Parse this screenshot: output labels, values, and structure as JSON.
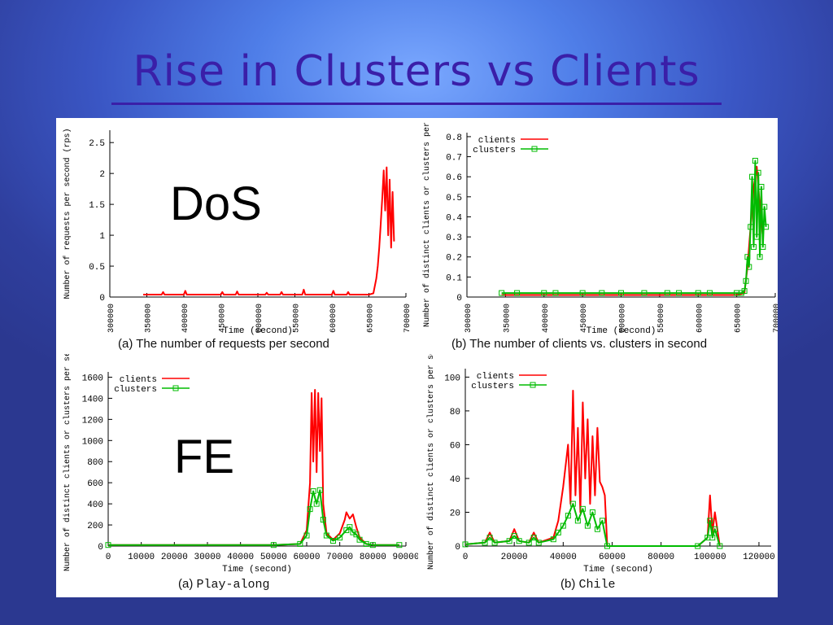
{
  "slide": {
    "title": "Rise in Clusters vs Clients",
    "label_dos": "DoS",
    "label_fe": "FE"
  },
  "colors": {
    "clients": "#ff0000",
    "clusters": "#00bb00",
    "title": "#3a1fa8"
  },
  "chart_data": [
    {
      "id": "dos-requests",
      "type": "line",
      "caption_prefix": "(a)",
      "caption_text": "The number of requests per second",
      "xlabel": "Time (second)",
      "ylabel": "Number of requests per second (rps)",
      "xlim": [
        300000,
        700000
      ],
      "ylim": [
        0,
        2.7
      ],
      "xticks": [
        300000,
        350000,
        400000,
        450000,
        500000,
        550000,
        600000,
        650000,
        700000
      ],
      "yticks": [
        0,
        0.5,
        1,
        1.5,
        2,
        2.5
      ],
      "x_tick_rotate": true,
      "legend": [],
      "series": [
        {
          "name": "",
          "color": "#ff0000",
          "x": [
            345000,
            370000,
            372000,
            374000,
            400000,
            402000,
            404000,
            450000,
            452000,
            454000,
            470000,
            472000,
            474000,
            510000,
            512000,
            514000,
            530000,
            532000,
            534000,
            560000,
            562000,
            564000,
            600000,
            602000,
            604000,
            620000,
            622000,
            624000,
            650000,
            656000,
            660000,
            662000,
            664000,
            666000,
            668000,
            670000,
            672000,
            674000,
            676000,
            678000,
            680000,
            682000,
            684000
          ],
          "y": [
            0.04,
            0.04,
            0.08,
            0.04,
            0.04,
            0.1,
            0.04,
            0.04,
            0.08,
            0.04,
            0.04,
            0.09,
            0.04,
            0.04,
            0.07,
            0.04,
            0.04,
            0.08,
            0.04,
            0.04,
            0.12,
            0.04,
            0.04,
            0.1,
            0.04,
            0.04,
            0.08,
            0.04,
            0.04,
            0.06,
            0.3,
            0.5,
            0.8,
            1.2,
            1.6,
            2.05,
            1.4,
            2.1,
            1.0,
            1.9,
            0.8,
            1.7,
            0.9
          ]
        }
      ]
    },
    {
      "id": "dos-clients-clusters",
      "type": "line",
      "caption_prefix": "(b)",
      "caption_text": "The number of clients vs. clusters in second",
      "xlabel": "Time (second)",
      "ylabel": "Number of distinct clients or clusters per sec",
      "xlim": [
        300000,
        700000
      ],
      "ylim": [
        0,
        0.82
      ],
      "xticks": [
        300000,
        350000,
        400000,
        450000,
        500000,
        550000,
        600000,
        650000,
        700000
      ],
      "yticks": [
        0,
        0.1,
        0.2,
        0.3,
        0.4,
        0.5,
        0.6,
        0.7,
        0.8
      ],
      "x_tick_rotate": true,
      "legend": [
        {
          "label": "clients",
          "color": "#ff0000",
          "marker": false
        },
        {
          "label": "clusters",
          "color": "#00bb00",
          "marker": true
        }
      ],
      "series": [
        {
          "name": "clients",
          "color": "#ff0000",
          "x": [
            345000,
            650000,
            660000,
            664000,
            668000,
            672000,
            676000,
            680000,
            684000
          ],
          "y": [
            0.01,
            0.01,
            0.02,
            0.15,
            0.35,
            0.55,
            0.65,
            0.45,
            0.3
          ]
        },
        {
          "name": "clusters",
          "color": "#00bb00",
          "x": [
            345000,
            365000,
            400000,
            415000,
            450000,
            475000,
            500000,
            530000,
            560000,
            575000,
            600000,
            615000,
            650000,
            656000,
            660000,
            662000,
            664000,
            666000,
            668000,
            670000,
            672000,
            674000,
            676000,
            678000,
            680000,
            682000,
            684000,
            686000,
            688000
          ],
          "y": [
            0.02,
            0.02,
            0.02,
            0.02,
            0.02,
            0.02,
            0.02,
            0.02,
            0.02,
            0.02,
            0.02,
            0.02,
            0.02,
            0.02,
            0.03,
            0.08,
            0.2,
            0.15,
            0.35,
            0.6,
            0.25,
            0.68,
            0.3,
            0.62,
            0.2,
            0.55,
            0.25,
            0.45,
            0.35
          ]
        }
      ]
    },
    {
      "id": "fe-play-along",
      "type": "line",
      "caption_prefix": "(a)",
      "caption_text": "Play-along",
      "xlabel": "Time (second)",
      "ylabel": "Number of distinct clients or clusters per sec",
      "xlim": [
        0,
        90000
      ],
      "ylim": [
        0,
        1650
      ],
      "xticks": [
        0,
        10000,
        20000,
        30000,
        40000,
        50000,
        60000,
        70000,
        80000,
        90000
      ],
      "yticks": [
        0,
        200,
        400,
        600,
        800,
        1000,
        1200,
        1400,
        1600
      ],
      "x_tick_rotate": false,
      "legend": [
        {
          "label": "clients",
          "color": "#ff0000",
          "marker": false
        },
        {
          "label": "clusters",
          "color": "#00bb00",
          "marker": true
        }
      ],
      "series": [
        {
          "name": "clients",
          "color": "#ff0000",
          "x": [
            0,
            50000,
            58000,
            60000,
            61000,
            61500,
            62000,
            62500,
            63000,
            63500,
            64000,
            64500,
            65000,
            66000,
            68000,
            70000,
            71500,
            72000,
            73000,
            74000,
            75000,
            76000,
            78000,
            80000,
            88000
          ],
          "y": [
            10,
            10,
            20,
            150,
            600,
            1450,
            800,
            1480,
            700,
            1450,
            900,
            1400,
            400,
            120,
            60,
            120,
            250,
            320,
            260,
            300,
            180,
            80,
            20,
            10,
            10
          ]
        },
        {
          "name": "clusters",
          "color": "#00bb00",
          "x": [
            0,
            50000,
            58000,
            60000,
            61000,
            62000,
            63000,
            64000,
            65000,
            66000,
            68000,
            70000,
            72000,
            73000,
            74000,
            75000,
            76000,
            78000,
            80000,
            88000
          ],
          "y": [
            10,
            10,
            20,
            100,
            350,
            520,
            400,
            530,
            250,
            100,
            50,
            80,
            150,
            180,
            130,
            110,
            60,
            20,
            10,
            10
          ]
        }
      ]
    },
    {
      "id": "fe-chile",
      "type": "line",
      "caption_prefix": "(b)",
      "caption_text": "Chile",
      "xlabel": "Time (second)",
      "ylabel": "Number of distinct clients or clusters per sec",
      "xlim": [
        0,
        125000
      ],
      "ylim": [
        0,
        105
      ],
      "xticks": [
        0,
        20000,
        40000,
        60000,
        80000,
        100000,
        120000
      ],
      "yticks": [
        0,
        20,
        40,
        60,
        80,
        100
      ],
      "x_tick_rotate": false,
      "legend": [
        {
          "label": "clients",
          "color": "#ff0000",
          "marker": false
        },
        {
          "label": "clusters",
          "color": "#00bb00",
          "marker": true
        }
      ],
      "series": [
        {
          "name": "clients",
          "color": "#ff0000",
          "x": [
            0,
            8000,
            10000,
            12000,
            18000,
            20000,
            22000,
            26000,
            28000,
            30000,
            36000,
            38000,
            40000,
            42000,
            43000,
            44000,
            45000,
            46000,
            47000,
            48000,
            49000,
            50000,
            51000,
            52000,
            53000,
            54000,
            55000,
            56000,
            57000,
            58000,
            95000,
            99000,
            100000,
            101000,
            102000,
            104000
          ],
          "y": [
            1,
            2,
            8,
            2,
            3,
            10,
            3,
            2,
            8,
            2,
            5,
            15,
            35,
            60,
            25,
            92,
            30,
            70,
            20,
            85,
            40,
            75,
            25,
            65,
            30,
            70,
            38,
            35,
            30,
            0,
            0,
            5,
            30,
            8,
            20,
            0
          ]
        },
        {
          "name": "clusters",
          "color": "#00bb00",
          "x": [
            0,
            8000,
            10000,
            12000,
            18000,
            20000,
            22000,
            26000,
            28000,
            30000,
            36000,
            38000,
            40000,
            42000,
            44000,
            46000,
            48000,
            50000,
            52000,
            54000,
            56000,
            58000,
            95000,
            99000,
            100000,
            101000,
            102000,
            104000
          ],
          "y": [
            1,
            2,
            5,
            2,
            3,
            6,
            3,
            2,
            5,
            2,
            4,
            8,
            12,
            18,
            25,
            15,
            22,
            12,
            20,
            10,
            15,
            0,
            0,
            5,
            15,
            5,
            10,
            0
          ]
        }
      ]
    }
  ]
}
